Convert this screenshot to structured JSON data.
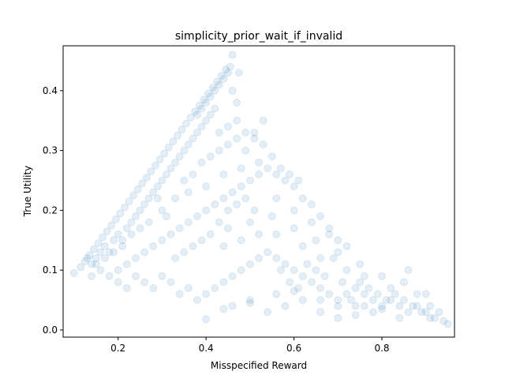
{
  "chart_data": {
    "type": "scatter",
    "title": "simplicity_prior_wait_if_invalid",
    "xlabel": "Misspecified Reward",
    "ylabel": "True Utility",
    "xlim": [
      0.075,
      0.965
    ],
    "ylim": [
      -0.012,
      0.475
    ],
    "xticks": [
      0.2,
      0.4,
      0.6,
      0.8
    ],
    "xtick_labels": [
      "0.2",
      "0.4",
      "0.6",
      "0.8"
    ],
    "yticks": [
      0.0,
      0.1,
      0.2,
      0.3,
      0.4
    ],
    "ytick_labels": [
      "0.0",
      "0.1",
      "0.2",
      "0.3",
      "0.4"
    ],
    "grid": false,
    "marker_color": "#1f77b4",
    "marker_alpha": 0.12,
    "series": [
      {
        "points": [
          [
            0.1,
            0.095
          ],
          [
            0.115,
            0.105
          ],
          [
            0.125,
            0.115
          ],
          [
            0.135,
            0.125
          ],
          [
            0.145,
            0.135
          ],
          [
            0.155,
            0.145
          ],
          [
            0.165,
            0.155
          ],
          [
            0.175,
            0.165
          ],
          [
            0.185,
            0.175
          ],
          [
            0.195,
            0.185
          ],
          [
            0.205,
            0.195
          ],
          [
            0.215,
            0.205
          ],
          [
            0.225,
            0.215
          ],
          [
            0.235,
            0.225
          ],
          [
            0.245,
            0.235
          ],
          [
            0.255,
            0.245
          ],
          [
            0.265,
            0.255
          ],
          [
            0.275,
            0.265
          ],
          [
            0.285,
            0.275
          ],
          [
            0.295,
            0.285
          ],
          [
            0.305,
            0.295
          ],
          [
            0.315,
            0.305
          ],
          [
            0.325,
            0.315
          ],
          [
            0.335,
            0.325
          ],
          [
            0.345,
            0.335
          ],
          [
            0.355,
            0.345
          ],
          [
            0.365,
            0.355
          ],
          [
            0.375,
            0.365
          ],
          [
            0.385,
            0.375
          ],
          [
            0.395,
            0.385
          ],
          [
            0.405,
            0.395
          ],
          [
            0.415,
            0.405
          ],
          [
            0.425,
            0.415
          ],
          [
            0.435,
            0.425
          ],
          [
            0.445,
            0.435
          ],
          [
            0.455,
            0.44
          ],
          [
            0.46,
            0.46
          ],
          [
            0.475,
            0.43
          ],
          [
            0.13,
            0.12
          ],
          [
            0.14,
            0.11
          ],
          [
            0.15,
            0.12
          ],
          [
            0.16,
            0.13
          ],
          [
            0.17,
            0.14
          ],
          [
            0.18,
            0.13
          ],
          [
            0.19,
            0.15
          ],
          [
            0.2,
            0.16
          ],
          [
            0.21,
            0.15
          ],
          [
            0.22,
            0.17
          ],
          [
            0.23,
            0.18
          ],
          [
            0.24,
            0.19
          ],
          [
            0.25,
            0.2
          ],
          [
            0.26,
            0.21
          ],
          [
            0.27,
            0.22
          ],
          [
            0.28,
            0.23
          ],
          [
            0.29,
            0.24
          ],
          [
            0.3,
            0.25
          ],
          [
            0.31,
            0.26
          ],
          [
            0.32,
            0.27
          ],
          [
            0.33,
            0.28
          ],
          [
            0.34,
            0.29
          ],
          [
            0.35,
            0.3
          ],
          [
            0.36,
            0.31
          ],
          [
            0.37,
            0.32
          ],
          [
            0.38,
            0.33
          ],
          [
            0.39,
            0.34
          ],
          [
            0.4,
            0.35
          ],
          [
            0.41,
            0.36
          ],
          [
            0.42,
            0.37
          ],
          [
            0.14,
            0.09
          ],
          [
            0.16,
            0.1
          ],
          [
            0.18,
            0.09
          ],
          [
            0.2,
            0.1
          ],
          [
            0.22,
            0.11
          ],
          [
            0.24,
            0.12
          ],
          [
            0.26,
            0.13
          ],
          [
            0.28,
            0.14
          ],
          [
            0.3,
            0.15
          ],
          [
            0.32,
            0.16
          ],
          [
            0.34,
            0.17
          ],
          [
            0.36,
            0.18
          ],
          [
            0.38,
            0.19
          ],
          [
            0.4,
            0.2
          ],
          [
            0.42,
            0.21
          ],
          [
            0.44,
            0.22
          ],
          [
            0.46,
            0.23
          ],
          [
            0.48,
            0.24
          ],
          [
            0.5,
            0.25
          ],
          [
            0.52,
            0.26
          ],
          [
            0.54,
            0.27
          ],
          [
            0.56,
            0.26
          ],
          [
            0.58,
            0.25
          ],
          [
            0.6,
            0.24
          ],
          [
            0.62,
            0.22
          ],
          [
            0.64,
            0.21
          ],
          [
            0.66,
            0.19
          ],
          [
            0.68,
            0.17
          ],
          [
            0.7,
            0.15
          ],
          [
            0.72,
            0.14
          ],
          [
            0.2,
            0.08
          ],
          [
            0.22,
            0.07
          ],
          [
            0.24,
            0.09
          ],
          [
            0.26,
            0.08
          ],
          [
            0.28,
            0.07
          ],
          [
            0.3,
            0.09
          ],
          [
            0.32,
            0.08
          ],
          [
            0.34,
            0.06
          ],
          [
            0.36,
            0.07
          ],
          [
            0.38,
            0.05
          ],
          [
            0.4,
            0.06
          ],
          [
            0.42,
            0.07
          ],
          [
            0.44,
            0.08
          ],
          [
            0.46,
            0.09
          ],
          [
            0.48,
            0.1
          ],
          [
            0.5,
            0.11
          ],
          [
            0.52,
            0.12
          ],
          [
            0.54,
            0.13
          ],
          [
            0.56,
            0.12
          ],
          [
            0.58,
            0.11
          ],
          [
            0.6,
            0.1
          ],
          [
            0.62,
            0.09
          ],
          [
            0.64,
            0.08
          ],
          [
            0.66,
            0.07
          ],
          [
            0.68,
            0.06
          ],
          [
            0.7,
            0.05
          ],
          [
            0.72,
            0.06
          ],
          [
            0.74,
            0.07
          ],
          [
            0.76,
            0.06
          ],
          [
            0.78,
            0.05
          ],
          [
            0.8,
            0.04
          ],
          [
            0.82,
            0.05
          ],
          [
            0.84,
            0.04
          ],
          [
            0.86,
            0.03
          ],
          [
            0.88,
            0.04
          ],
          [
            0.9,
            0.03
          ],
          [
            0.92,
            0.02
          ],
          [
            0.94,
            0.015
          ],
          [
            0.93,
            0.03
          ],
          [
            0.91,
            0.04
          ],
          [
            0.35,
            0.25
          ],
          [
            0.37,
            0.26
          ],
          [
            0.39,
            0.28
          ],
          [
            0.41,
            0.29
          ],
          [
            0.43,
            0.3
          ],
          [
            0.45,
            0.31
          ],
          [
            0.47,
            0.32
          ],
          [
            0.49,
            0.3
          ],
          [
            0.51,
            0.33
          ],
          [
            0.53,
            0.35
          ],
          [
            0.33,
            0.22
          ],
          [
            0.36,
            0.23
          ],
          [
            0.4,
            0.24
          ],
          [
            0.44,
            0.26
          ],
          [
            0.48,
            0.27
          ],
          [
            0.52,
            0.28
          ],
          [
            0.56,
            0.22
          ],
          [
            0.6,
            0.2
          ],
          [
            0.64,
            0.18
          ],
          [
            0.68,
            0.16
          ],
          [
            0.45,
            0.17
          ],
          [
            0.5,
            0.18
          ],
          [
            0.55,
            0.19
          ],
          [
            0.6,
            0.17
          ],
          [
            0.65,
            0.15
          ],
          [
            0.7,
            0.13
          ],
          [
            0.75,
            0.11
          ],
          [
            0.8,
            0.09
          ],
          [
            0.85,
            0.08
          ],
          [
            0.9,
            0.06
          ],
          [
            0.44,
            0.14
          ],
          [
            0.48,
            0.15
          ],
          [
            0.52,
            0.16
          ],
          [
            0.56,
            0.16
          ],
          [
            0.62,
            0.14
          ],
          [
            0.66,
            0.12
          ],
          [
            0.72,
            0.1
          ],
          [
            0.76,
            0.09
          ],
          [
            0.82,
            0.07
          ],
          [
            0.86,
            0.1
          ],
          [
            0.46,
            0.04
          ],
          [
            0.5,
            0.05
          ],
          [
            0.54,
            0.03
          ],
          [
            0.58,
            0.04
          ],
          [
            0.62,
            0.05
          ],
          [
            0.66,
            0.03
          ],
          [
            0.7,
            0.02
          ],
          [
            0.74,
            0.04
          ],
          [
            0.78,
            0.03
          ],
          [
            0.84,
            0.02
          ],
          [
            0.29,
            0.22
          ],
          [
            0.3,
            0.2
          ],
          [
            0.31,
            0.19
          ],
          [
            0.27,
            0.18
          ],
          [
            0.25,
            0.17
          ],
          [
            0.23,
            0.16
          ],
          [
            0.21,
            0.14
          ],
          [
            0.19,
            0.13
          ],
          [
            0.17,
            0.12
          ],
          [
            0.15,
            0.11
          ],
          [
            0.33,
            0.12
          ],
          [
            0.35,
            0.13
          ],
          [
            0.37,
            0.14
          ],
          [
            0.39,
            0.15
          ],
          [
            0.41,
            0.16
          ],
          [
            0.43,
            0.18
          ],
          [
            0.45,
            0.2
          ],
          [
            0.47,
            0.21
          ],
          [
            0.49,
            0.22
          ],
          [
            0.51,
            0.2
          ],
          [
            0.57,
            0.1
          ],
          [
            0.59,
            0.08
          ],
          [
            0.61,
            0.07
          ],
          [
            0.63,
            0.11
          ],
          [
            0.65,
            0.1
          ],
          [
            0.67,
            0.09
          ],
          [
            0.69,
            0.12
          ],
          [
            0.71,
            0.08
          ],
          [
            0.73,
            0.05
          ],
          [
            0.75,
            0.08
          ],
          [
            0.77,
            0.07
          ],
          [
            0.79,
            0.06
          ],
          [
            0.81,
            0.05
          ],
          [
            0.83,
            0.06
          ],
          [
            0.85,
            0.05
          ],
          [
            0.87,
            0.04
          ],
          [
            0.89,
            0.03
          ],
          [
            0.91,
            0.02
          ],
          [
            0.95,
            0.01
          ],
          [
            0.76,
            0.04
          ],
          [
            0.38,
            0.36
          ],
          [
            0.39,
            0.37
          ],
          [
            0.4,
            0.38
          ],
          [
            0.41,
            0.39
          ],
          [
            0.42,
            0.4
          ],
          [
            0.43,
            0.41
          ],
          [
            0.44,
            0.42
          ],
          [
            0.45,
            0.43
          ],
          [
            0.46,
            0.4
          ],
          [
            0.47,
            0.38
          ],
          [
            0.43,
            0.33
          ],
          [
            0.45,
            0.34
          ],
          [
            0.47,
            0.35
          ],
          [
            0.49,
            0.33
          ],
          [
            0.51,
            0.32
          ],
          [
            0.53,
            0.31
          ],
          [
            0.55,
            0.29
          ],
          [
            0.57,
            0.27
          ],
          [
            0.59,
            0.26
          ],
          [
            0.61,
            0.25
          ],
          [
            0.4,
            0.018
          ],
          [
            0.44,
            0.035
          ],
          [
            0.5,
            0.045
          ],
          [
            0.56,
            0.06
          ],
          [
            0.6,
            0.065
          ],
          [
            0.66,
            0.05
          ],
          [
            0.7,
            0.04
          ],
          [
            0.74,
            0.025
          ],
          [
            0.8,
            0.035
          ],
          [
            0.88,
            0.06
          ]
        ]
      }
    ]
  }
}
